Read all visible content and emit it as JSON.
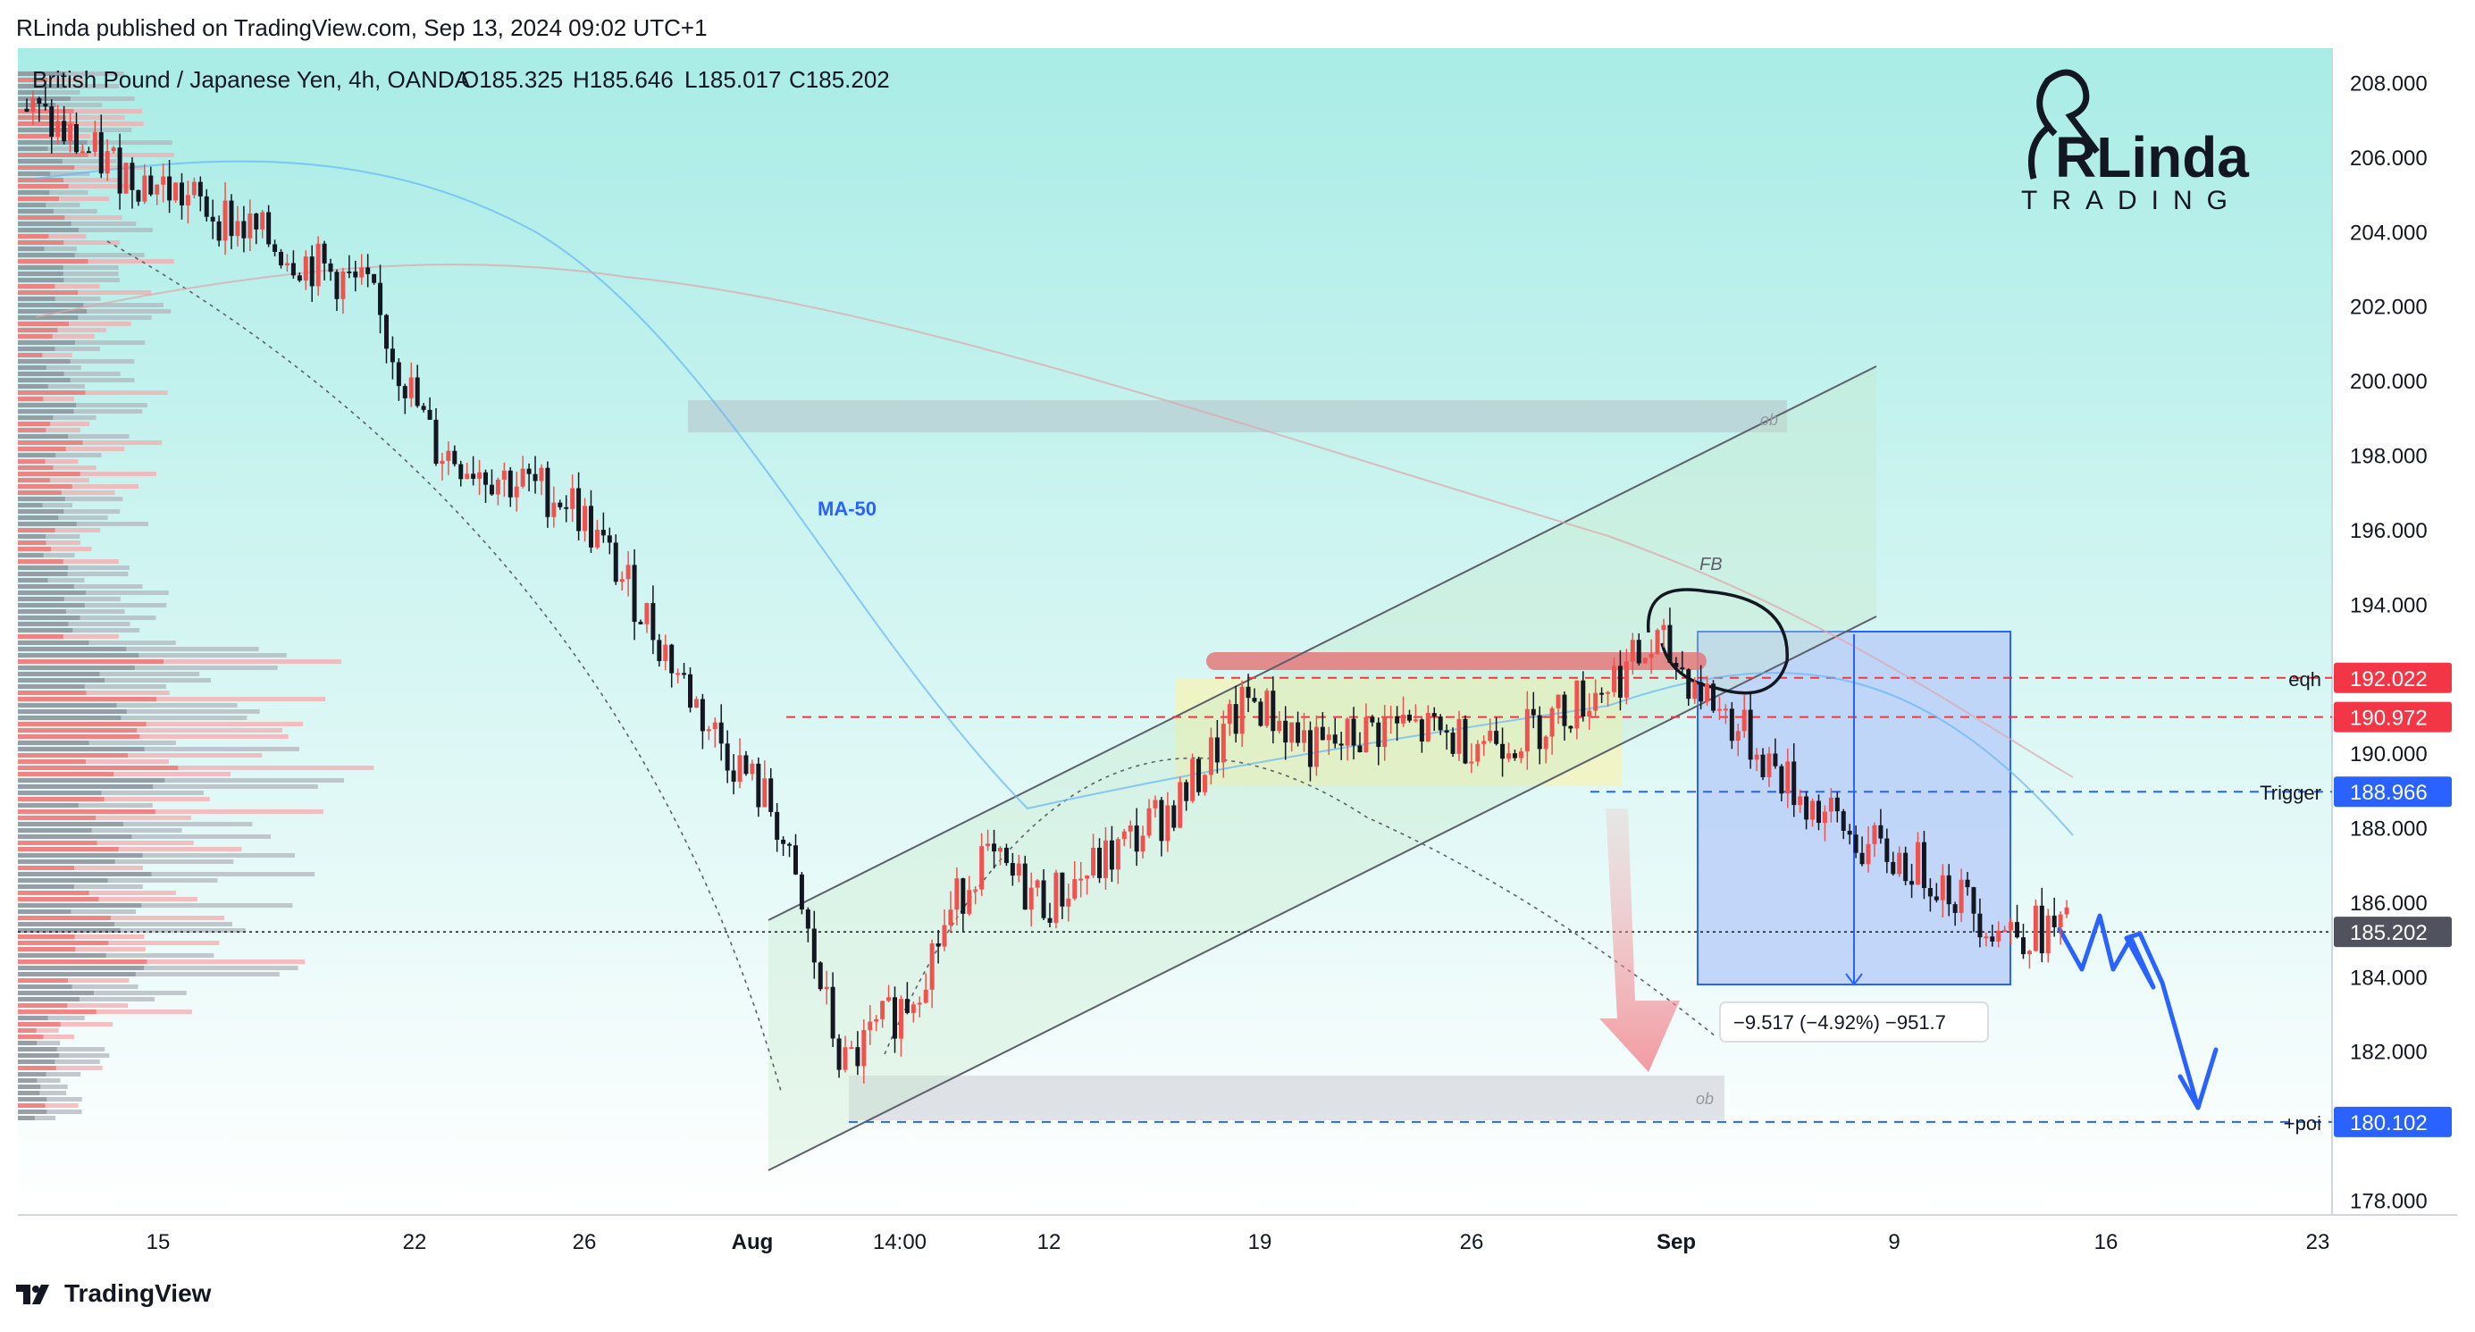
{
  "header": {
    "published": "RLinda published on TradingView.com, Sep 13, 2024 09:02 UTC+1",
    "symbol_line": "British Pound / Japanese Yen, 4h, OANDA",
    "ohlc": {
      "o": "O185.325",
      "h": "H185.646",
      "l": "L185.017",
      "c": "C185.202"
    }
  },
  "logo": {
    "line1": "RLinda",
    "line2": "TRADING"
  },
  "footer": {
    "brand": "TradingView"
  },
  "colors": {
    "up": "#26a69a",
    "down": "#ef5350",
    "candle_up": "#ef5350",
    "candle_down": "#131722",
    "red_label": "#f23645",
    "blue_label": "#2962ff",
    "gray_label": "#50535e",
    "bg_top": "#a9ece6",
    "bg_bottom": "#ffffff"
  },
  "chart_data": {
    "type": "candlestick",
    "title": "British Pound / Japanese Yen, 4h, OANDA",
    "ylim": [
      177.5,
      208.7
    ],
    "y_ticks": [
      "178.000",
      "180.000",
      "182.000",
      "184.000",
      "186.000",
      "188.000",
      "190.000",
      "192.000",
      "194.000",
      "196.000",
      "198.000",
      "200.000",
      "202.000",
      "204.000",
      "206.000",
      "208.000"
    ],
    "x_ticks": [
      {
        "label": "15",
        "bold": false
      },
      {
        "label": "22",
        "bold": false
      },
      {
        "label": "26",
        "bold": false
      },
      {
        "label": "Aug",
        "bold": true
      },
      {
        "label": "14:00",
        "bold": false
      },
      {
        "label": "12",
        "bold": false
      },
      {
        "label": "19",
        "bold": false
      },
      {
        "label": "26",
        "bold": false
      },
      {
        "label": "Sep",
        "bold": true
      },
      {
        "label": "9",
        "bold": false
      },
      {
        "label": "16",
        "bold": false
      },
      {
        "label": "23",
        "bold": false
      }
    ],
    "price_path": [
      207.3,
      206.0,
      205.2,
      204.3,
      203.3,
      202.4,
      198.2,
      197.4,
      196.8,
      194.0,
      190.8,
      188.4,
      181.5,
      183.5,
      187.2,
      186.0,
      187.3,
      188.8,
      191.5,
      190.0,
      190.8,
      190.4,
      190.5,
      191.6,
      192.9,
      191.0,
      189.0,
      187.5,
      186.8,
      185.3,
      185.2
    ],
    "price_labels": [
      {
        "value": 192.022,
        "text": "192.022",
        "note": "eqh",
        "color": "red"
      },
      {
        "value": 190.972,
        "text": "190.972",
        "note": "",
        "color": "red"
      },
      {
        "value": 188.966,
        "text": "188.966",
        "note": "Trigger",
        "color": "blue"
      },
      {
        "value": 185.202,
        "text": "185.202",
        "note": "",
        "color": "gray"
      },
      {
        "value": 180.102,
        "text": "180.102",
        "note": "+poi",
        "color": "blue"
      }
    ],
    "annotations": {
      "ma50": "MA-50",
      "fb": "FB",
      "ob_top": "ob",
      "ob_bottom": "ob",
      "measure": "−9.517 (−4.92%) −951.7"
    }
  }
}
